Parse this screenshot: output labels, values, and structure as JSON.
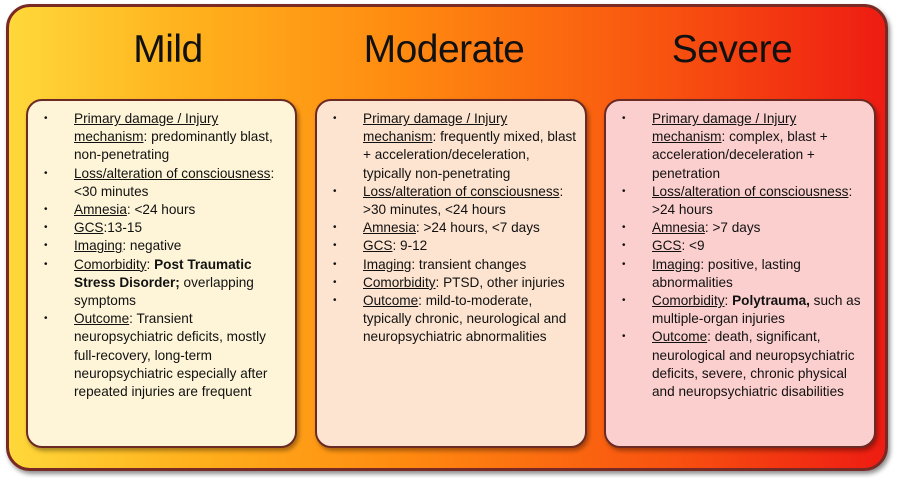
{
  "columns": [
    {
      "title": "Mild",
      "bg": "#fef5d8",
      "items": [
        {
          "label": "Primary damage / Injury mechanism",
          "text": ": predominantly blast, non-penetrating"
        },
        {
          "label": "Loss/alteration of consciousness",
          "text": ": <30 minutes"
        },
        {
          "label": "Amnesia",
          "text": ": <24 hours"
        },
        {
          "label": "GCS",
          "text": ":13-15"
        },
        {
          "label": "Imaging",
          "text": ": negative"
        },
        {
          "label": "Comorbidity",
          "text": ": ",
          "bold": "Post Traumatic Stress Disorder;",
          "text2": " overlapping symptoms"
        },
        {
          "label": "Outcome",
          "text": ": Transient neuropsychiatric deficits, mostly full-recovery, long-term neuropsychiatric especially after repeated injuries are frequent"
        }
      ]
    },
    {
      "title": "Moderate",
      "bg": "#fde4d0",
      "items": [
        {
          "label": "Primary damage / Injury mechanism",
          "text": ": frequently mixed, blast + acceleration/deceleration, typically non-penetrating"
        },
        {
          "label": "Loss/alteration of consciousness",
          "text": ": >30 minutes, <24 hours"
        },
        {
          "label": "Amnesia",
          "text": ":  >24 hours, <7 days"
        },
        {
          "label": "GCS",
          "text": ": 9-12"
        },
        {
          "label": "Imaging",
          "text": ": transient changes"
        },
        {
          "label": "Comorbidity",
          "text": ": PTSD, other injuries"
        },
        {
          "label": "Outcome",
          "text": ": mild-to-moderate, typically chronic, neurological and neuropsychiatric abnormalities"
        }
      ]
    },
    {
      "title": "Severe",
      "bg": "#fccfcf",
      "items": [
        {
          "label": "Primary damage / Injury mechanism",
          "text": ": complex, blast + acceleration/deceleration + penetration"
        },
        {
          "label": "Loss/alteration of consciousness",
          "text": ": >24 hours"
        },
        {
          "label": "Amnesia",
          "text": ": >7 days"
        },
        {
          "label": "GCS",
          "text": ": <9"
        },
        {
          "label": "Imaging",
          "text": ": positive, lasting abnormalities"
        },
        {
          "label": "Comorbidity",
          "text": ": ",
          "bold": "Polytrauma,",
          "text2": " such as multiple-organ injuries"
        },
        {
          "label": "Outcome",
          "text": ": death, significant, neurological and neuropsychiatric deficits, severe, chronic physical and neuropsychiatric disabilities"
        }
      ]
    }
  ]
}
